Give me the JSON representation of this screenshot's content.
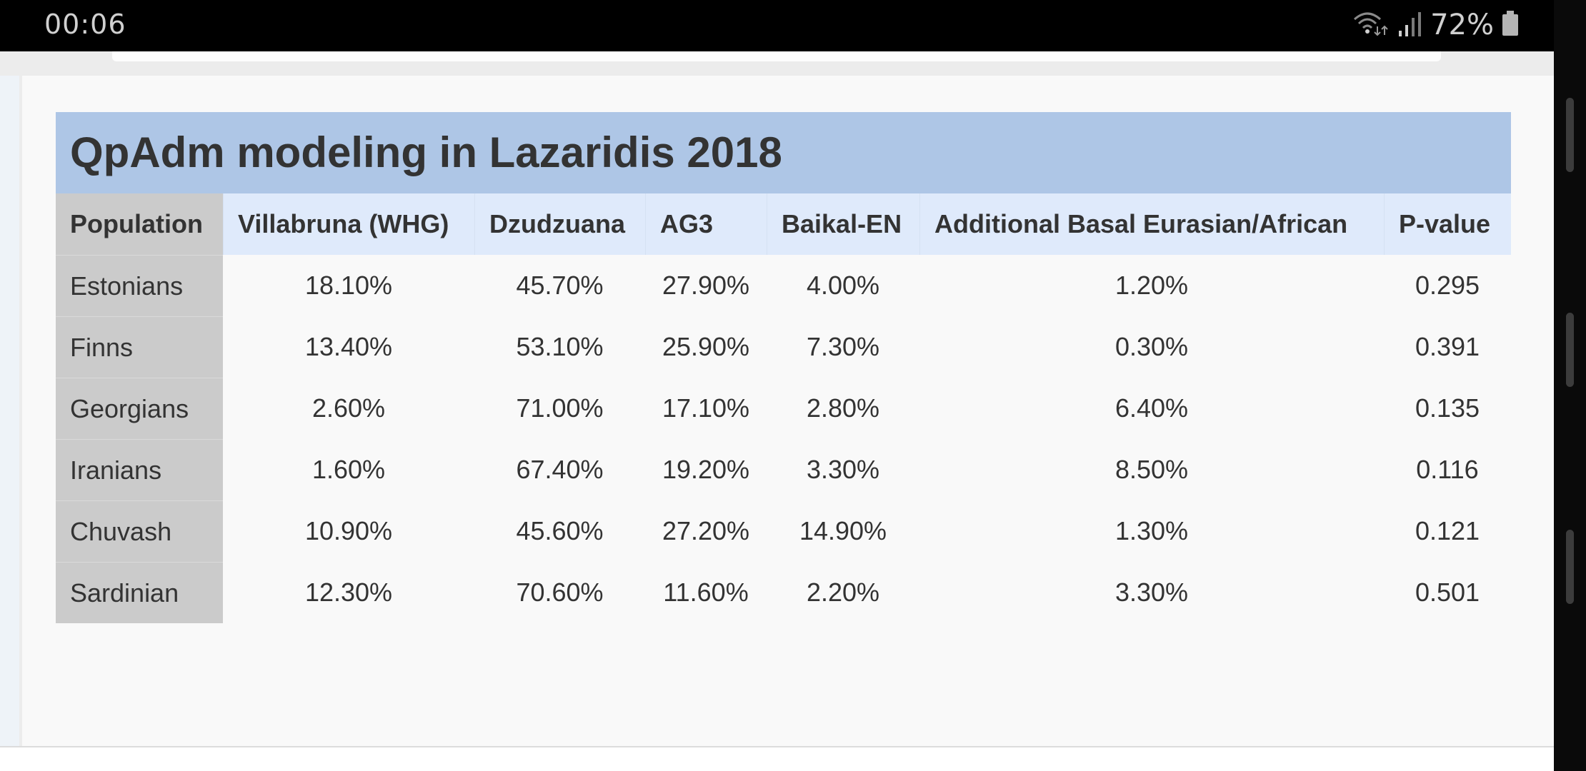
{
  "status_bar": {
    "time": "00:06",
    "battery_percent": "72%",
    "icons": [
      "wifi-icon",
      "signal-icon",
      "battery-icon"
    ]
  },
  "table": {
    "title": "QpAdm modeling in Lazaridis 2018",
    "headers": [
      "Population",
      "Villabruna (WHG)",
      "Dzudzuana",
      "AG3",
      "Baikal-EN",
      "Additional Basal Eurasian/African",
      "P-value"
    ],
    "rows": [
      [
        "Estonians",
        "18.10%",
        "45.70%",
        "27.90%",
        "4.00%",
        "1.20%",
        "0.295"
      ],
      [
        "Finns",
        "13.40%",
        "53.10%",
        "25.90%",
        "7.30%",
        "0.30%",
        "0.391"
      ],
      [
        "Georgians",
        "2.60%",
        "71.00%",
        "17.10%",
        "2.80%",
        "6.40%",
        "0.135"
      ],
      [
        "Iranians",
        "1.60%",
        "67.40%",
        "19.20%",
        "3.30%",
        "8.50%",
        "0.116"
      ],
      [
        "Chuvash",
        "10.90%",
        "45.60%",
        "27.20%",
        "14.90%",
        "1.30%",
        "0.121"
      ],
      [
        "Sardinian",
        "12.30%",
        "70.60%",
        "11.60%",
        "2.20%",
        "3.30%",
        "0.501"
      ]
    ]
  },
  "colors": {
    "title_band": "#aec6e6",
    "header_row": "#dfeafb",
    "population_column": "#cbcbcb",
    "content_background": "#f9f9f9"
  }
}
